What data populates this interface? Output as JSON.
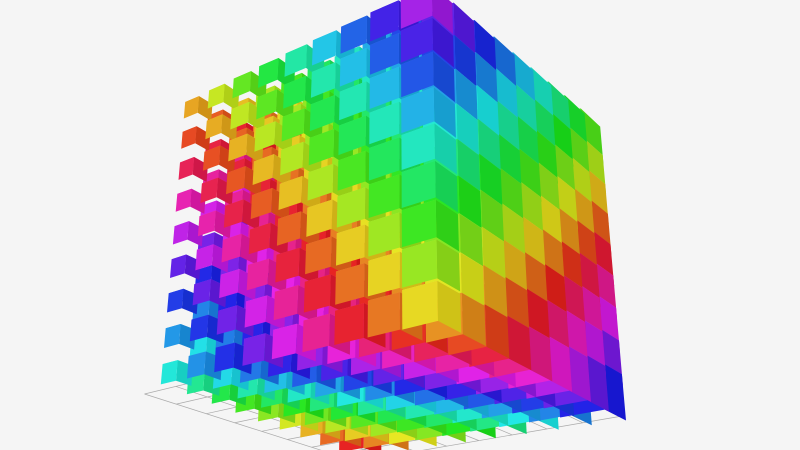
{
  "chart_data": {
    "type": "scatter3D",
    "symbol": "cube",
    "title": "",
    "grid": true,
    "background": "#f5f5f5",
    "grid_color": "#aaaaaa",
    "x": [
      0,
      1,
      2,
      3,
      4,
      5,
      6,
      7,
      8
    ],
    "y": [
      0,
      1,
      2,
      3,
      4,
      5,
      6,
      7,
      8
    ],
    "z": [
      0,
      1,
      2,
      3,
      4,
      5,
      6,
      7,
      8
    ],
    "xlim": [
      0,
      8
    ],
    "ylim": [
      0,
      8
    ],
    "zlim": [
      0,
      8
    ],
    "color_encoding": "hue",
    "size_encoding": "value"
  }
}
